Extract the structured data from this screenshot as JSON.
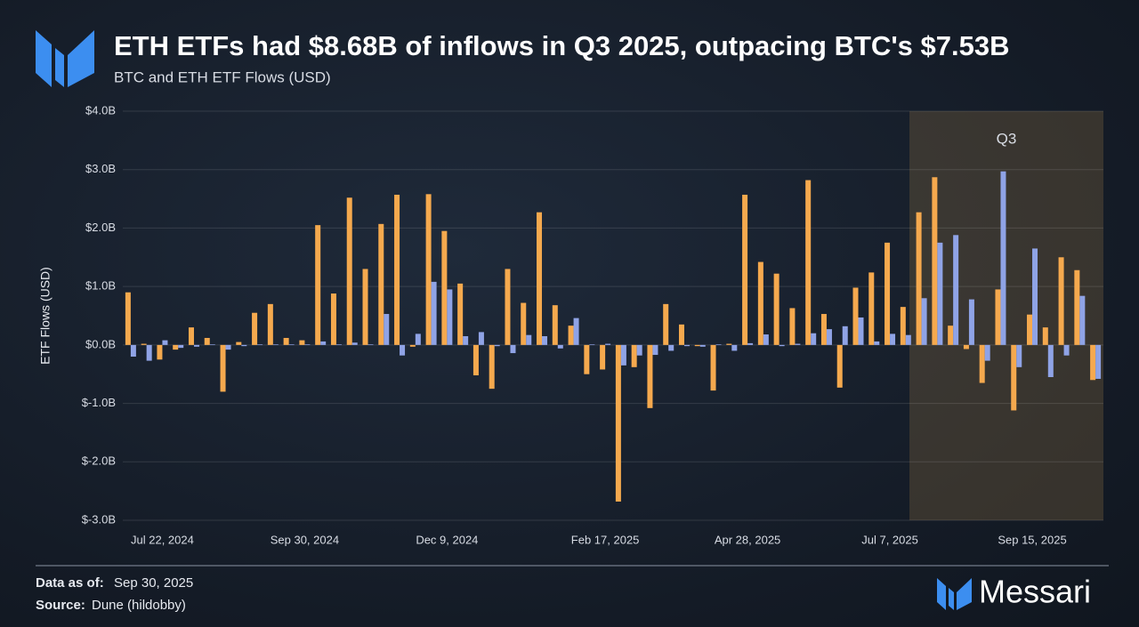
{
  "chart_data": {
    "type": "bar",
    "title": "ETH ETFs had $8.68B of inflows in Q3 2025, outpacing BTC's $7.53B",
    "subtitle": "BTC and ETH ETF Flows (USD)",
    "y_label": "ETF Flows (USD)",
    "annotation": "Q3",
    "categories": [
      null,
      null,
      "Jul 22, 2024",
      null,
      null,
      null,
      null,
      null,
      null,
      null,
      null,
      "Sep 30, 2024",
      null,
      null,
      null,
      null,
      null,
      null,
      null,
      null,
      "Dec 9, 2024",
      null,
      null,
      null,
      null,
      null,
      null,
      null,
      null,
      null,
      "Feb 17, 2025",
      null,
      null,
      null,
      null,
      null,
      null,
      null,
      null,
      "Apr 28, 2025",
      null,
      null,
      null,
      null,
      null,
      null,
      null,
      null,
      "Jul 7, 2025",
      null,
      null,
      null,
      null,
      null,
      null,
      null,
      null,
      "Sep 15, 2025",
      null,
      null,
      null,
      null
    ],
    "series": [
      {
        "color": "#f5a94e",
        "values": [
          0.9,
          0.02,
          -0.25,
          -0.08,
          0.3,
          0.12,
          -0.8,
          0.05,
          0.55,
          0.7,
          0.12,
          0.08,
          2.05,
          0.88,
          2.52,
          1.3,
          2.07,
          2.57,
          -0.03,
          2.58,
          1.95,
          1.05,
          -0.52,
          -0.75,
          1.3,
          0.72,
          2.27,
          0.68,
          0.33,
          -0.5,
          -0.42,
          -2.68,
          -0.38,
          -1.08,
          0.7,
          0.35,
          -0.02,
          -0.78,
          0.02,
          2.57,
          1.42,
          1.22,
          0.63,
          2.82,
          0.53,
          -0.73,
          0.98,
          1.24,
          1.75,
          0.65,
          2.27,
          2.87,
          0.33,
          -0.07,
          -0.65,
          0.95,
          -1.12,
          0.52,
          0.3,
          1.5,
          1.28,
          -0.6
        ]
      },
      {
        "color": "#8fa3e6",
        "values": [
          -0.2,
          -0.27,
          0.08,
          -0.05,
          -0.03,
          0.01,
          -0.08,
          -0.02,
          0.01,
          0.01,
          0.01,
          0.01,
          0.06,
          0.01,
          0.04,
          0.01,
          0.53,
          -0.18,
          0.19,
          1.08,
          0.95,
          0.15,
          0.22,
          -0.02,
          -0.14,
          0.17,
          0.15,
          -0.06,
          0.46,
          0.01,
          0.02,
          -0.35,
          -0.18,
          -0.17,
          -0.1,
          -0.02,
          -0.03,
          0.01,
          -0.1,
          0.03,
          0.18,
          -0.02,
          0.02,
          0.2,
          0.27,
          0.32,
          0.47,
          0.06,
          0.19,
          0.17,
          0.8,
          1.75,
          1.88,
          0.78,
          -0.27,
          2.97,
          -0.38,
          1.65,
          -0.55,
          -0.18,
          0.84,
          -0.58
        ]
      }
    ],
    "ylim": [
      -3,
      4
    ],
    "yticks": [
      {
        "value": 4,
        "label": "$4.0B"
      },
      {
        "value": 3,
        "label": "$3.0B"
      },
      {
        "value": 2,
        "label": "$2.0B"
      },
      {
        "value": 1,
        "label": "$1.0B"
      },
      {
        "value": 0,
        "label": "$0.0B"
      },
      {
        "value": -1,
        "label": "$-1.0B"
      },
      {
        "value": -2,
        "label": "$-2.0B"
      },
      {
        "value": -3,
        "label": "$-3.0B"
      }
    ],
    "grid": true
  },
  "footer": {
    "date_label": "Data as of:",
    "date": "Sep 30, 2025",
    "source_label": "Source:",
    "source": "Dune (hildobby)",
    "brand": "Messari"
  }
}
